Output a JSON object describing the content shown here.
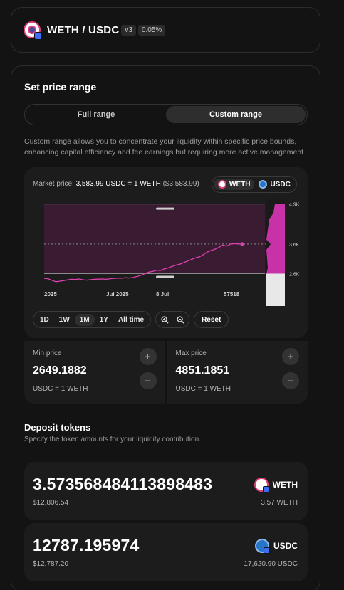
{
  "pair": {
    "title": "WETH / USDC",
    "version": "v3",
    "fee": "0.05%"
  },
  "range": {
    "title": "Set price range",
    "tabs": [
      {
        "label": "Full range",
        "active": false
      },
      {
        "label": "Custom range",
        "active": true
      }
    ],
    "description": "Custom range allows you to concentrate your liquidity within specific price bounds, enhancing capital efficiency and fee earnings but requiring more active management."
  },
  "chart": {
    "market_label": "Market price:",
    "market_value": "3,583.99 USDC = 1 WETH",
    "market_usd": "($3,583.99)",
    "toggle": [
      {
        "label": "WETH",
        "active": true
      },
      {
        "label": "USDC",
        "active": false
      }
    ],
    "x_labels": [
      "2025",
      "Jul 2025",
      "8 Jul",
      "57518"
    ],
    "y_labels": [
      "4.9K",
      "3.6K",
      "2.6K"
    ],
    "time_ranges": [
      {
        "label": "1D",
        "active": false
      },
      {
        "label": "1W",
        "active": false
      },
      {
        "label": "1M",
        "active": true
      },
      {
        "label": "1Y",
        "active": false
      },
      {
        "label": "All time",
        "active": false
      }
    ],
    "reset_label": "Reset",
    "colors": {
      "accent": "#e040b0",
      "band": "#3a1c32"
    }
  },
  "chart_data": {
    "type": "line",
    "y_axis_ticks": [
      "4.9K",
      "3.6K",
      "2.6K"
    ],
    "x_axis_ticks": [
      "2025",
      "Jul 2025",
      "8 Jul",
      "57518"
    ],
    "series": [
      {
        "values": [
          2500,
          2490,
          2440,
          2395,
          2410,
          2430,
          2450,
          2470,
          2465,
          2480,
          2455,
          2445,
          2460,
          2470,
          2475,
          2480,
          2470,
          2490,
          2500,
          2510,
          2505,
          2520,
          2510,
          2530,
          2560,
          2600,
          2650,
          2700,
          2720,
          2760,
          2750,
          2800,
          2830,
          2880,
          2920,
          2950,
          3000,
          3050,
          3100,
          3150,
          3180,
          3250,
          3330,
          3380,
          3420,
          3480,
          3550,
          3520,
          3580,
          3600,
          3590,
          3584
        ]
      }
    ],
    "range_min": 2649.1882,
    "range_max": 4851.1851,
    "current_price": 3583.99,
    "ylim": [
      2300,
      5000
    ]
  },
  "min_price": {
    "label": "Min price",
    "value": "2649.1882",
    "unit": "USDC = 1 WETH"
  },
  "max_price": {
    "label": "Max price",
    "value": "4851.1851",
    "unit": "USDC = 1 WETH"
  },
  "deposit": {
    "title": "Deposit tokens",
    "subtitle": "Specify the token amounts for your liquidity contribution.",
    "weth": {
      "amount": "3.573568484113898483",
      "usd": "$12,806.54",
      "symbol": "WETH",
      "balance": "3.57 WETH"
    },
    "usdc": {
      "amount": "12787.195974",
      "usd": "$12,787.20",
      "symbol": "USDC",
      "balance": "17,620.90 USDC"
    }
  }
}
